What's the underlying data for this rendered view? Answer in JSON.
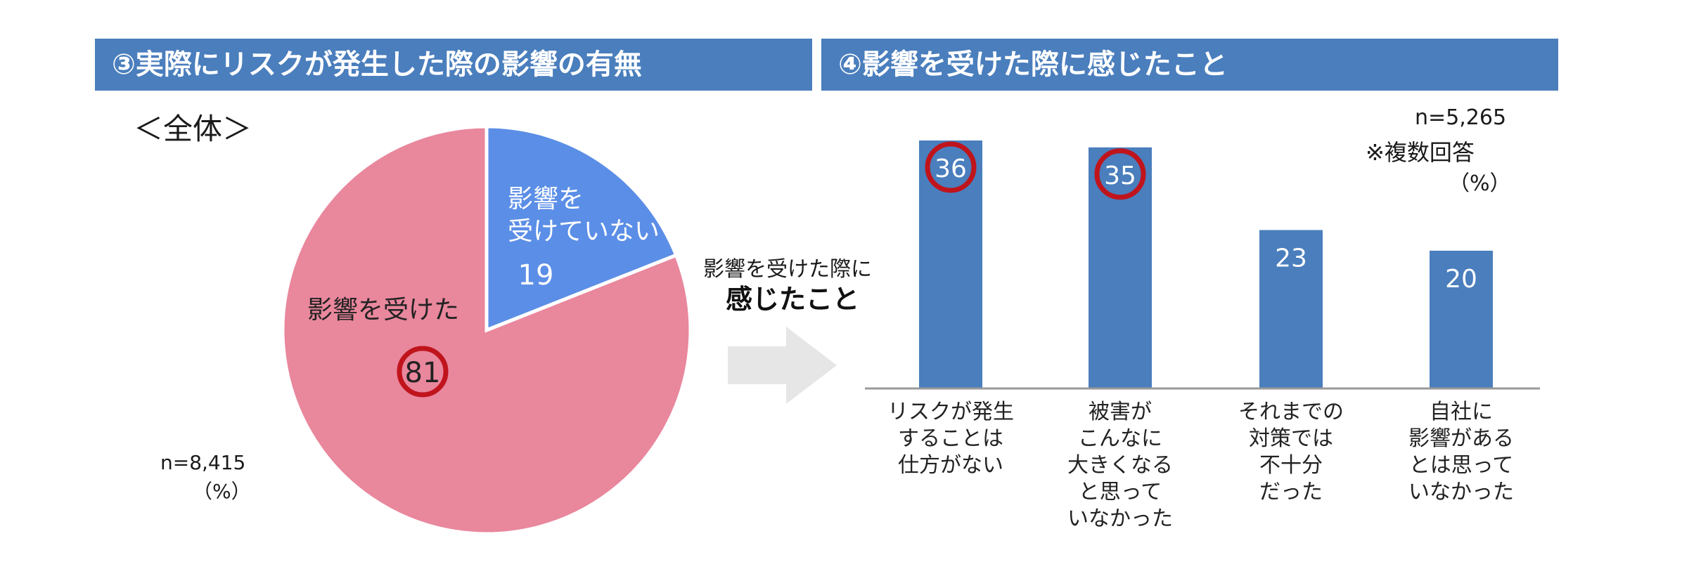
{
  "headers": {
    "left": "③実際にリスクが発生した際の影響の有無",
    "right": "④影響を受けた際に感じたこと"
  },
  "pie_panel": {
    "subtitle": "＜全体＞",
    "n_label": "n=8,415",
    "unit": "（%）"
  },
  "arrow_caption": {
    "line1": "影響を受けた際に",
    "line2": "感じたこと"
  },
  "bar_panel": {
    "n_label": "n=5,265",
    "note": "※複数回答",
    "unit": "（%）"
  },
  "colors": {
    "header": "#4a7ebd",
    "pie_affected": "#e9879d",
    "pie_not_affected": "#5b8ee6",
    "bar": "#4a7ebd",
    "highlight_ring": "#c0141c",
    "arrow": "#e6e6e6"
  },
  "chart_data": [
    {
      "type": "pie",
      "slices": [
        {
          "label": "影響を受けていない",
          "label_lines": [
            "影響を",
            "受けていない"
          ],
          "value": 19,
          "highlight": false
        },
        {
          "label": "影響を受けた",
          "label_lines": [
            "影響を受けた"
          ],
          "value": 81,
          "highlight": true
        }
      ]
    },
    {
      "type": "bar",
      "categories": [
        [
          "リスクが発生",
          "することは",
          "仕方がない"
        ],
        [
          "被害が",
          "こんなに",
          "大きくなる",
          "と思って",
          "いなかった"
        ],
        [
          "それまでの",
          "対策では",
          "不十分",
          "だった"
        ],
        [
          "自社に",
          "影響がある",
          "とは思って",
          "いなかった"
        ]
      ],
      "values": [
        36,
        35,
        23,
        20
      ],
      "highlight": [
        true,
        true,
        false,
        false
      ],
      "ylim": [
        0,
        36
      ]
    }
  ]
}
